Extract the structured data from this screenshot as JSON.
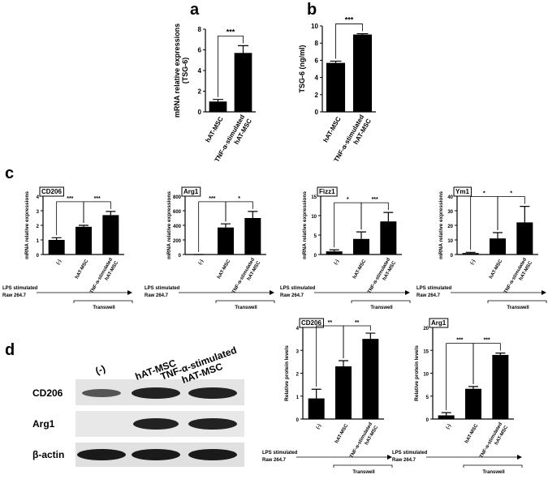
{
  "panel_labels": [
    "a",
    "b",
    "c",
    "d"
  ],
  "blot": {
    "columns": [
      "(-)",
      "hAT-MSC",
      [
        "TNF-α-stimulated",
        "hAT-MSC"
      ]
    ],
    "rows": [
      "CD206",
      "Arg1",
      "β-actin"
    ]
  },
  "chart_data": [
    {
      "type": "bar",
      "ylabel": [
        "mRNA relative expressions",
        "(TSG-6)"
      ],
      "categories": [
        "hAT-MSC",
        [
          "TNF-α-stimulated",
          "hAT-MSC"
        ]
      ],
      "values": [
        1,
        5.7
      ],
      "errors": [
        0.2,
        0.7
      ],
      "color": "#000000",
      "ylim": [
        0,
        8
      ],
      "yticks": [
        0,
        2,
        4,
        6,
        8
      ],
      "annotations": [
        "***"
      ]
    },
    {
      "type": "bar",
      "ylabel": [
        "TSG-6 (ng/ml)"
      ],
      "categories": [
        "hAT-MSC",
        [
          "TNF-α-stimulated",
          "hAT-MSC"
        ]
      ],
      "values": [
        5.7,
        9.0
      ],
      "errors": [
        0.2,
        0.1
      ],
      "color": "#000000",
      "ylim": [
        0,
        10
      ],
      "yticks": [
        0,
        2,
        4,
        6,
        8,
        10
      ],
      "annotations": [
        "***"
      ]
    },
    {
      "type": "bar",
      "title": "CD206",
      "ylabel": [
        "mRNA relative expressions"
      ],
      "categories": [
        "(-)",
        "hAT-MSC",
        [
          "TNF-α-stimulated",
          "hAT-MSC"
        ]
      ],
      "values": [
        1,
        1.9,
        2.7
      ],
      "errors": [
        0.15,
        0.1,
        0.25
      ],
      "color": "#000000",
      "ylim": [
        0,
        4
      ],
      "yticks": [
        0,
        1,
        2,
        3,
        4
      ],
      "annotations": [
        "***",
        "***"
      ],
      "footnote": [
        "LPS stimulated",
        "Raw 264.7"
      ],
      "bracket_label": "Transwell"
    },
    {
      "type": "bar",
      "title": "Arg1",
      "ylabel": [
        "mRNA relative expressions"
      ],
      "categories": [
        "(-)",
        "hAT-MSC",
        [
          "TNF-α-stimulated",
          "hAT-MSC"
        ]
      ],
      "values": [
        0,
        370,
        500
      ],
      "errors": [
        0,
        50,
        90
      ],
      "color": "#000000",
      "ylim": [
        0,
        800
      ],
      "yticks": [
        0,
        200,
        400,
        600,
        800
      ],
      "annotations": [
        "***",
        "*"
      ],
      "footnote": [
        "LPS stimulated",
        "Raw 264.7"
      ],
      "bracket_label": "Transwell"
    },
    {
      "type": "bar",
      "title": "Fizz1",
      "ylabel": [
        "mRNA relative expressions"
      ],
      "categories": [
        "(-)",
        "hAT-MSC",
        [
          "TNF-α-stimulated",
          "hAT-MSC"
        ]
      ],
      "values": [
        0.8,
        4,
        8.5
      ],
      "errors": [
        0.4,
        1.8,
        2.3
      ],
      "color": "#000000",
      "ylim": [
        0,
        15
      ],
      "yticks": [
        0,
        5,
        10,
        15
      ],
      "annotations": [
        "*",
        "***"
      ],
      "footnote": [
        "LPS stimulated",
        "Raw 264.7"
      ],
      "bracket_label": "Transwell"
    },
    {
      "type": "bar",
      "title": "Ym1",
      "ylabel": [
        "mRNA relative expressions"
      ],
      "categories": [
        "(-)",
        "hAT-MSC",
        [
          "TNF-α-stimulated",
          "hAT-MSC"
        ]
      ],
      "values": [
        1,
        11,
        22
      ],
      "errors": [
        0.5,
        4,
        11
      ],
      "color": "#000000",
      "ylim": [
        0,
        40
      ],
      "yticks": [
        0,
        10,
        20,
        30,
        40
      ],
      "annotations": [
        "*",
        "*"
      ],
      "footnote": [
        "LPS stimulated",
        "Raw 264.7"
      ],
      "bracket_label": "Transwell"
    },
    {
      "type": "bar",
      "title": "CD206",
      "ylabel": [
        "Relative protein levels"
      ],
      "categories": [
        "(-)",
        "hAT-MSC",
        [
          "TNF-α-stimulated",
          "hAT-MSC"
        ]
      ],
      "values": [
        0.9,
        2.3,
        3.5
      ],
      "errors": [
        0.4,
        0.25,
        0.25
      ],
      "color": "#000000",
      "ylim": [
        0,
        4
      ],
      "yticks": [
        0,
        1,
        2,
        3,
        4
      ],
      "annotations": [
        "**",
        "**"
      ],
      "footnote": [
        "LPS stimulated",
        "Raw 264.7"
      ],
      "bracket_label": "Transwell"
    },
    {
      "type": "bar",
      "title": "Arg1",
      "ylabel": [
        "Relative protein levels"
      ],
      "categories": [
        "(-)",
        "hAT-MSC",
        [
          "TNF-α-stimulated",
          "hAT-MSC"
        ]
      ],
      "values": [
        0.8,
        6.6,
        14
      ],
      "errors": [
        0.6,
        0.5,
        0.4
      ],
      "color": "#000000",
      "ylim": [
        0,
        20
      ],
      "yticks": [
        0,
        5,
        10,
        15,
        20
      ],
      "annotations": [
        "***",
        "***"
      ],
      "footnote": [
        "LPS stimulated",
        "Raw 264.7"
      ],
      "bracket_label": "Transwell"
    }
  ]
}
